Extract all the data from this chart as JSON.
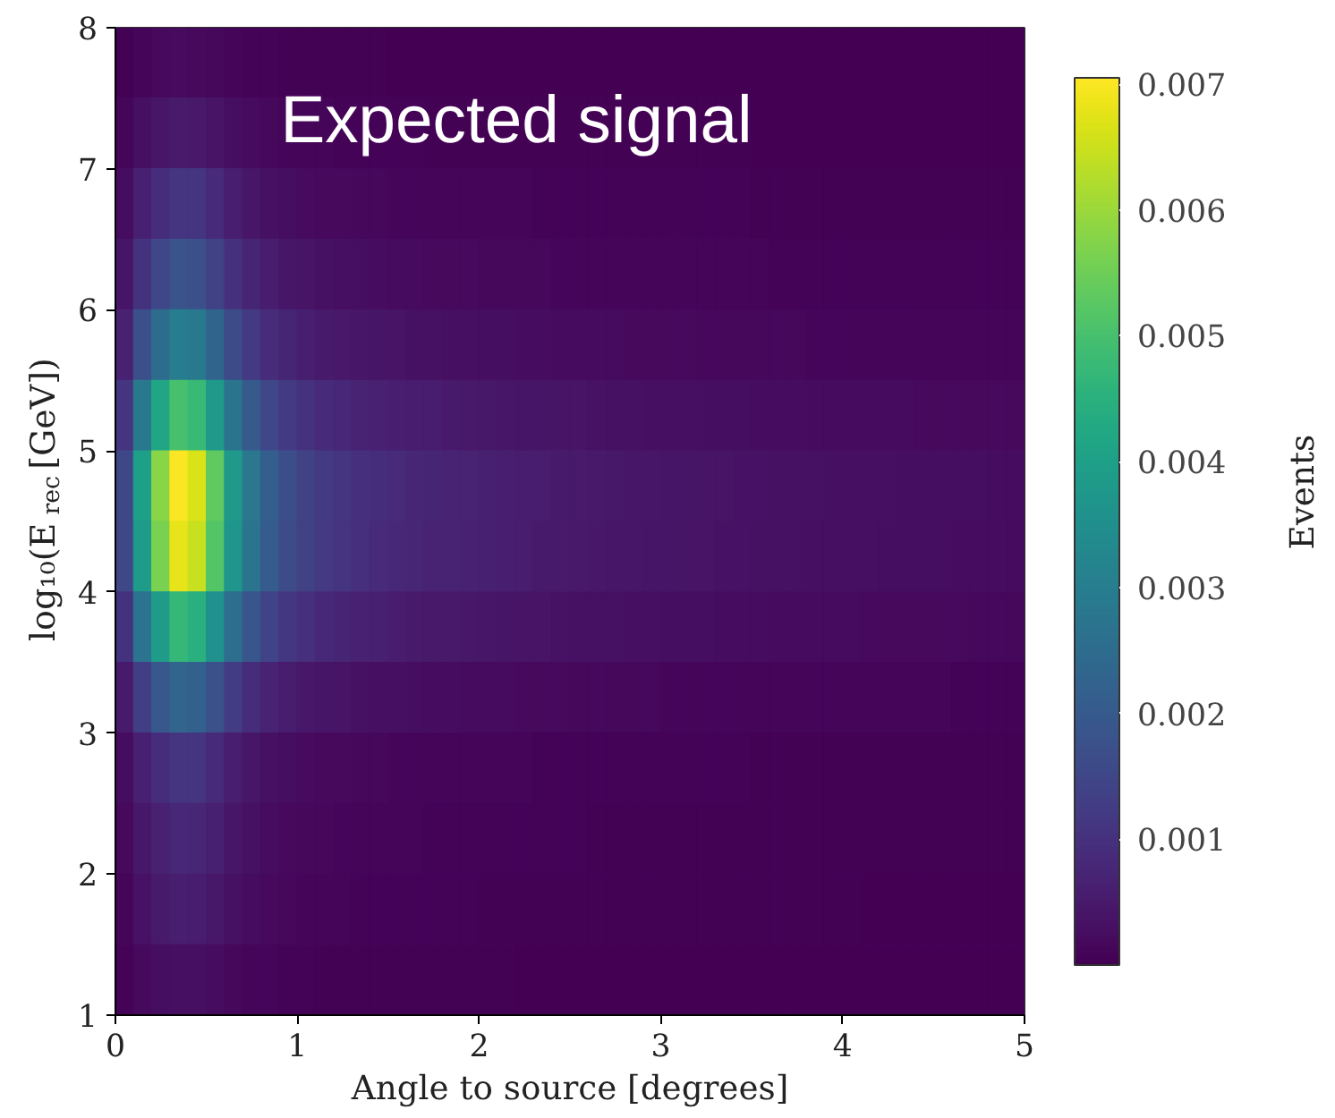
{
  "chart_data": {
    "type": "heatmap",
    "title": "Expected signal",
    "xlabel": "Angle to source [degrees]",
    "ylabel": "log₁₀(E$_{rec}$ [GeV])",
    "clabel": "Events",
    "x": [
      0.05,
      0.15,
      0.25,
      0.35,
      0.45,
      0.55,
      0.65,
      0.75,
      0.85,
      0.95,
      1.05,
      1.15,
      1.25,
      1.35,
      1.45,
      1.55,
      1.65,
      1.75,
      1.85,
      1.95,
      2.05,
      2.15,
      2.25,
      2.35,
      2.45,
      2.55,
      2.65,
      2.75,
      2.85,
      2.95,
      3.05,
      3.15,
      3.25,
      3.35,
      3.45,
      3.55,
      3.65,
      3.75,
      3.85,
      3.95,
      4.05,
      4.15,
      4.25,
      4.35,
      4.45,
      4.55,
      4.65,
      4.75,
      4.85,
      4.95
    ],
    "y": [
      7.75,
      7.25,
      6.75,
      6.25,
      5.75,
      5.25,
      4.75,
      4.25,
      3.75,
      3.25,
      2.75,
      2.25,
      1.75,
      1.25
    ],
    "xlim": [
      0,
      5
    ],
    "ylim": [
      1,
      8
    ],
    "xticks": [
      0,
      1,
      2,
      3,
      4,
      5
    ],
    "yticks": [
      1,
      2,
      3,
      4,
      5,
      6,
      7,
      8
    ],
    "clim": [
      0,
      0.00705
    ],
    "cticks": [
      0.001,
      0.002,
      0.003,
      0.004,
      0.005,
      0.006,
      0.007
    ],
    "cells": [
      [
        4e-05,
        0.00011,
        0.00017,
        0.0002,
        0.00019,
        0.00015,
        0.00011,
        8e-05,
        6e-05,
        5e-05,
        4e-05,
        3e-05,
        3e-05,
        3e-05,
        3e-05,
        2e-05,
        2e-05,
        2e-05,
        2e-05,
        2e-05,
        2e-05,
        2e-05,
        2e-05,
        2e-05,
        1e-05,
        1e-05,
        1e-05,
        1e-05,
        1e-05,
        1e-05,
        1e-05,
        1e-05,
        1e-05,
        1e-05,
        1e-05,
        1e-05,
        1e-05,
        1e-05,
        1e-05,
        1e-05,
        1e-05,
        1e-05,
        1e-05,
        1e-05,
        1e-05,
        1e-05,
        1e-05,
        1e-05,
        1e-05,
        1e-05
      ],
      [
        0.00011,
        0.00029,
        0.00042,
        0.0005,
        0.00048,
        0.00038,
        0.00027,
        0.0002,
        0.00015,
        0.00012,
        0.0001,
        9e-05,
        8e-05,
        7e-05,
        7e-05,
        6e-05,
        6e-05,
        5e-05,
        5e-05,
        5e-05,
        5e-05,
        4e-05,
        4e-05,
        4e-05,
        4e-05,
        4e-05,
        3e-05,
        3e-05,
        3e-05,
        3e-05,
        3e-05,
        3e-05,
        3e-05,
        3e-05,
        3e-05,
        2e-05,
        2e-05,
        2e-05,
        2e-05,
        2e-05,
        2e-05,
        2e-05,
        2e-05,
        2e-05,
        2e-05,
        2e-05,
        2e-05,
        2e-05,
        2e-05,
        2e-05
      ],
      [
        0.00024,
        0.00063,
        0.00091,
        0.0011,
        0.00105,
        0.00084,
        0.00059,
        0.00044,
        0.00033,
        0.00026,
        0.00022,
        0.00019,
        0.00017,
        0.00015,
        0.00014,
        0.00013,
        0.00012,
        0.00012,
        0.00011,
        0.0001,
        0.0001,
        9e-05,
        9e-05,
        8e-05,
        8e-05,
        8e-05,
        7e-05,
        7e-05,
        7e-05,
        7e-05,
        6e-05,
        6e-05,
        6e-05,
        6e-05,
        6e-05,
        5e-05,
        5e-05,
        5e-05,
        5e-05,
        5e-05,
        5e-05,
        5e-05,
        4e-05,
        4e-05,
        4e-05,
        4e-05,
        4e-05,
        4e-05,
        4e-05,
        4e-05
      ],
      [
        0.0004,
        0.00103,
        0.00149,
        0.0018,
        0.00171,
        0.00137,
        0.00097,
        0.00072,
        0.00054,
        0.00043,
        0.00036,
        0.00031,
        0.00028,
        0.00025,
        0.00023,
        0.00022,
        0.0002,
        0.00019,
        0.00018,
        0.00017,
        0.00016,
        0.00015,
        0.00014,
        0.00014,
        0.00013,
        0.00013,
        0.00012,
        0.00012,
        0.00011,
        0.00011,
        0.0001,
        0.0001,
        0.0001,
        9e-05,
        9e-05,
        9e-05,
        8e-05,
        8e-05,
        8e-05,
        8e-05,
        8e-05,
        7e-05,
        7e-05,
        7e-05,
        7e-05,
        7e-05,
        6e-05,
        6e-05,
        6e-05,
        6e-05
      ],
      [
        0.00066,
        0.00171,
        0.00249,
        0.003,
        0.00285,
        0.00228,
        0.00162,
        0.0012,
        0.0009,
        0.00072,
        0.0006,
        0.00051,
        0.00047,
        0.00042,
        0.00039,
        0.00036,
        0.00033,
        0.00032,
        0.0003,
        0.00029,
        0.00027,
        0.00026,
        0.00024,
        0.00023,
        0.00022,
        0.00021,
        0.0002,
        0.0002,
        0.00019,
        0.00018,
        0.00017,
        0.00017,
        0.00016,
        0.00016,
        0.00015,
        0.00014,
        0.00014,
        0.00014,
        0.00013,
        0.00013,
        0.00013,
        0.00012,
        0.00012,
        0.00012,
        0.00011,
        0.00011,
        0.00011,
        0.00011,
        0.0001,
        0.0001
      ],
      [
        0.0011,
        0.00285,
        0.00415,
        0.005,
        0.00475,
        0.0038,
        0.0027,
        0.002,
        0.0015,
        0.0012,
        0.001,
        0.00085,
        0.00078,
        0.0007,
        0.00065,
        0.0006,
        0.00055,
        0.00053,
        0.0005,
        0.00048,
        0.00045,
        0.00043,
        0.0004,
        0.00039,
        0.00037,
        0.00036,
        0.00034,
        0.00033,
        0.00031,
        0.0003,
        0.00029,
        0.00028,
        0.00027,
        0.00026,
        0.00025,
        0.00024,
        0.00023,
        0.00023,
        0.00022,
        0.00022,
        0.00021,
        0.00021,
        0.0002,
        0.0002,
        0.00019,
        0.00019,
        0.00018,
        0.00018,
        0.00017,
        0.00017
      ],
      [
        0.00154,
        0.00399,
        0.00581,
        0.007,
        0.00665,
        0.00532,
        0.00378,
        0.0028,
        0.0021,
        0.00168,
        0.0014,
        0.00119,
        0.00109,
        0.00098,
        0.00091,
        0.00084,
        0.00077,
        0.00074,
        0.0007,
        0.00067,
        0.00063,
        0.0006,
        0.00056,
        0.00054,
        0.00052,
        0.0005,
        0.00048,
        0.00046,
        0.00043,
        0.00042,
        0.00041,
        0.00039,
        0.00038,
        0.00036,
        0.00035,
        0.00034,
        0.00032,
        0.00032,
        0.00031,
        0.0003,
        0.00029,
        0.00029,
        0.00028,
        0.00027,
        0.00027,
        0.00026,
        0.00025,
        0.00025,
        0.00024,
        0.00023
      ],
      [
        0.0015,
        0.00388,
        0.00564,
        0.0068,
        0.00646,
        0.00517,
        0.00367,
        0.00272,
        0.00204,
        0.00163,
        0.00136,
        0.00116,
        0.00105,
        0.00095,
        0.00088,
        0.00082,
        0.00075,
        0.00071,
        0.00068,
        0.00065,
        0.00061,
        0.00058,
        0.00054,
        0.00052,
        0.0005,
        0.00048,
        0.00046,
        0.00044,
        0.00042,
        0.00041,
        0.00039,
        0.00038,
        0.00037,
        0.00035,
        0.00034,
        0.00033,
        0.00031,
        0.00031,
        0.0003,
        0.00029,
        0.00029,
        0.00028,
        0.00027,
        0.00027,
        0.00026,
        0.00025,
        0.00024,
        0.00024,
        0.00023,
        0.00022
      ],
      [
        0.00103,
        0.00268,
        0.0039,
        0.0047,
        0.00447,
        0.00357,
        0.00254,
        0.00188,
        0.00141,
        0.00113,
        0.00094,
        0.0008,
        0.00073,
        0.00066,
        0.00061,
        0.00056,
        0.00052,
        0.00049,
        0.00047,
        0.00045,
        0.00042,
        0.0004,
        0.00038,
        0.00036,
        0.00035,
        0.00033,
        0.00032,
        0.00031,
        0.00029,
        0.00028,
        0.00027,
        0.00026,
        0.00025,
        0.00024,
        0.00024,
        0.00023,
        0.00022,
        0.00021,
        0.00021,
        0.0002,
        0.0002,
        0.00019,
        0.00019,
        0.00018,
        0.00018,
        0.00017,
        0.00017,
        0.00016,
        0.00016,
        0.00016
      ],
      [
        0.00051,
        0.00131,
        0.00191,
        0.0023,
        0.00219,
        0.00175,
        0.00124,
        0.00092,
        0.00069,
        0.00055,
        0.00046,
        0.00039,
        0.00036,
        0.00032,
        0.0003,
        0.00028,
        0.00025,
        0.00024,
        0.00023,
        0.00022,
        0.00021,
        0.0002,
        0.00018,
        0.00018,
        0.00017,
        0.00016,
        0.00016,
        0.00015,
        0.00014,
        0.00014,
        0.00013,
        0.00013,
        0.00012,
        0.00012,
        0.00012,
        0.00011,
        0.00011,
        0.0001,
        0.0001,
        0.0001,
        0.0001,
        9e-05,
        9e-05,
        9e-05,
        9e-05,
        9e-05,
        8e-05,
        8e-05,
        8e-05,
        8e-05
      ],
      [
        0.00024,
        0.00063,
        0.00091,
        0.0011,
        0.00105,
        0.00084,
        0.00059,
        0.00044,
        0.00033,
        0.00026,
        0.00022,
        0.00019,
        0.00017,
        0.00015,
        0.00014,
        0.00013,
        0.00012,
        0.00012,
        0.00011,
        0.0001,
        0.0001,
        9e-05,
        9e-05,
        8e-05,
        8e-05,
        8e-05,
        7e-05,
        7e-05,
        7e-05,
        7e-05,
        6e-05,
        6e-05,
        6e-05,
        6e-05,
        6e-05,
        5e-05,
        5e-05,
        5e-05,
        5e-05,
        5e-05,
        5e-05,
        5e-05,
        4e-05,
        4e-05,
        4e-05,
        4e-05,
        4e-05,
        4e-05,
        4e-05,
        4e-05
      ],
      [
        0.00018,
        0.00046,
        0.00066,
        0.0008,
        0.00076,
        0.00061,
        0.00043,
        0.00032,
        0.00024,
        0.00019,
        0.00016,
        0.00014,
        0.00012,
        0.00011,
        0.0001,
        0.0001,
        9e-05,
        8e-05,
        8e-05,
        8e-05,
        7e-05,
        7e-05,
        6e-05,
        6e-05,
        6e-05,
        6e-05,
        5e-05,
        5e-05,
        5e-05,
        5e-05,
        5e-05,
        4e-05,
        4e-05,
        4e-05,
        4e-05,
        4e-05,
        4e-05,
        4e-05,
        4e-05,
        3e-05,
        3e-05,
        3e-05,
        3e-05,
        3e-05,
        3e-05,
        3e-05,
        3e-05,
        3e-05,
        3e-05,
        3e-05
      ],
      [
        0.00013,
        0.00034,
        0.0005,
        0.0006,
        0.00057,
        0.00046,
        0.00032,
        0.00024,
        0.00018,
        0.00014,
        0.00012,
        0.0001,
        9e-05,
        8e-05,
        8e-05,
        7e-05,
        7e-05,
        6e-05,
        6e-05,
        6e-05,
        5e-05,
        5e-05,
        5e-05,
        5e-05,
        4e-05,
        4e-05,
        4e-05,
        4e-05,
        4e-05,
        4e-05,
        3e-05,
        3e-05,
        3e-05,
        3e-05,
        3e-05,
        3e-05,
        3e-05,
        3e-05,
        3e-05,
        3e-05,
        3e-05,
        2e-05,
        2e-05,
        2e-05,
        2e-05,
        2e-05,
        2e-05,
        2e-05,
        2e-05,
        2e-05
      ],
      [
        7e-05,
        0.00017,
        0.00025,
        0.0003,
        0.00029,
        0.00023,
        0.00016,
        0.00012,
        9e-05,
        7e-05,
        6e-05,
        5e-05,
        5e-05,
        4e-05,
        4e-05,
        4e-05,
        3e-05,
        3e-05,
        3e-05,
        3e-05,
        3e-05,
        3e-05,
        2e-05,
        2e-05,
        2e-05,
        2e-05,
        2e-05,
        2e-05,
        2e-05,
        2e-05,
        2e-05,
        2e-05,
        2e-05,
        2e-05,
        2e-05,
        1e-05,
        1e-05,
        1e-05,
        1e-05,
        1e-05,
        1e-05,
        1e-05,
        1e-05,
        1e-05,
        1e-05,
        1e-05,
        1e-05,
        1e-05,
        1e-05,
        1e-05
      ]
    ]
  }
}
